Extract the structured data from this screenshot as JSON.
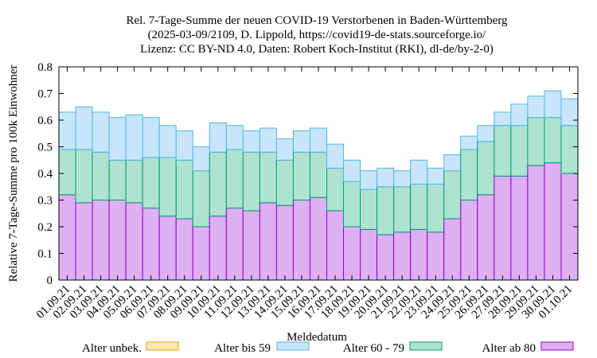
{
  "chart_data": {
    "type": "bar",
    "stacked": true,
    "title_lines": [
      "Rel. 7-Tage-Summe der neuen COVID-19 Verstorbenen in Baden-Württemberg",
      "(2025-03-09/2109, D. Lippold, https://covid19-de-stats.sourceforge.io/",
      "Lizenz: CC BY-ND 4.0, Daten: Robert Koch-Institut (RKI), dl-de/by-2-0)"
    ],
    "xlabel": "Meldedatum",
    "ylabel": "Relative 7-Tage-Summe pro 100k Einwohner",
    "ylim": [
      0,
      0.8
    ],
    "yticks": [
      "0",
      "0.1",
      "0.2",
      "0.3",
      "0.4",
      "0.5",
      "0.6",
      "0.7",
      "0.8"
    ],
    "grid": false,
    "legend_position": "bottom",
    "categories": [
      "01.09.21",
      "02.09.21",
      "03.09.21",
      "04.09.21",
      "05.09.21",
      "06.09.21",
      "07.09.21",
      "08.09.21",
      "09.09.21",
      "10.09.21",
      "11.09.21",
      "12.09.21",
      "13.09.21",
      "14.09.21",
      "15.09.21",
      "16.09.21",
      "17.09.21",
      "18.09.21",
      "19.09.21",
      "20.09.21",
      "21.09.21",
      "22.09.21",
      "23.09.21",
      "24.09.21",
      "25.09.21",
      "26.09.21",
      "27.09.21",
      "28.09.21",
      "29.09.21",
      "30.09.21",
      "01.10.21"
    ],
    "series": [
      {
        "name": "Alter ab 80",
        "fill": "#dcb0f2",
        "stroke": "#9400d3",
        "values": [
          0.32,
          0.29,
          0.3,
          0.3,
          0.29,
          0.27,
          0.24,
          0.23,
          0.2,
          0.24,
          0.27,
          0.26,
          0.29,
          0.28,
          0.3,
          0.31,
          0.26,
          0.2,
          0.19,
          0.17,
          0.18,
          0.19,
          0.18,
          0.23,
          0.3,
          0.32,
          0.39,
          0.39,
          0.43,
          0.44,
          0.4
        ]
      },
      {
        "name": "Alter 60 - 79",
        "fill": "#aee3d2",
        "stroke": "#009e73",
        "values": [
          0.17,
          0.2,
          0.18,
          0.15,
          0.16,
          0.19,
          0.22,
          0.22,
          0.21,
          0.24,
          0.22,
          0.22,
          0.19,
          0.17,
          0.18,
          0.17,
          0.16,
          0.17,
          0.15,
          0.18,
          0.17,
          0.17,
          0.18,
          0.18,
          0.19,
          0.2,
          0.19,
          0.19,
          0.18,
          0.17,
          0.18
        ]
      },
      {
        "name": "Alter bis 59",
        "fill": "#c7e6f9",
        "stroke": "#56b4e9",
        "values": [
          0.14,
          0.16,
          0.15,
          0.16,
          0.17,
          0.15,
          0.12,
          0.11,
          0.09,
          0.11,
          0.09,
          0.08,
          0.09,
          0.08,
          0.08,
          0.09,
          0.09,
          0.08,
          0.07,
          0.07,
          0.06,
          0.09,
          0.06,
          0.06,
          0.05,
          0.06,
          0.05,
          0.08,
          0.08,
          0.1,
          0.1
        ]
      },
      {
        "name": "Alter unbek.",
        "fill": "#fde7b3",
        "stroke": "#e69f00",
        "values": [
          0,
          0,
          0,
          0,
          0,
          0,
          0,
          0,
          0,
          0,
          0,
          0,
          0,
          0,
          0,
          0,
          0,
          0,
          0,
          0,
          0,
          0,
          0,
          0,
          0,
          0,
          0,
          0,
          0,
          0,
          0
        ]
      }
    ],
    "legend_order": [
      "Alter unbek.",
      "Alter bis 59",
      "Alter 60 - 79",
      "Alter ab 80"
    ]
  }
}
